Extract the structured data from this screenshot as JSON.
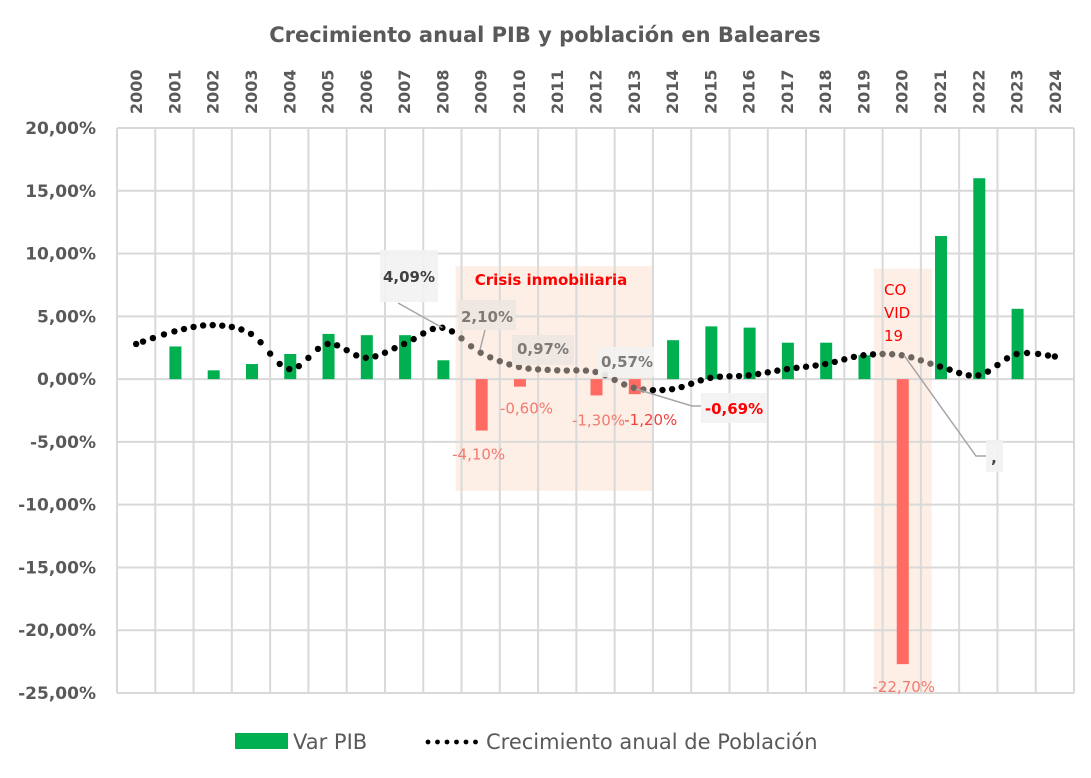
{
  "chart_data": {
    "type": "bar",
    "title": "Crecimiento anual PIB y población en Baleares",
    "xlabel": "",
    "ylabel": "",
    "categories": [
      "2000",
      "2001",
      "2002",
      "2003",
      "2004",
      "2005",
      "2006",
      "2007",
      "2008",
      "2009",
      "2010",
      "2011",
      "2012",
      "2013",
      "2014",
      "2015",
      "2016",
      "2017",
      "2018",
      "2019",
      "2020",
      "2021",
      "2022",
      "2023",
      "2024"
    ],
    "x_axis_position": "top",
    "ylim": [
      -25,
      20
    ],
    "ytick_step": 5,
    "ytick_labels": [
      "20,00%",
      "15,00%",
      "10,00%",
      "5,00%",
      "0,00%",
      "-5,00%",
      "-10,00%",
      "-15,00%",
      "-20,00%",
      "-25,00%"
    ],
    "grid": true,
    "legend_position": "bottom",
    "series": [
      {
        "name": "Var PIB",
        "type": "bar",
        "color": "#00B050",
        "negative_color": "#FF6B63",
        "values": [
          null,
          2.6,
          0.7,
          1.2,
          2.0,
          3.6,
          3.5,
          3.5,
          1.5,
          -4.1,
          -0.6,
          0.0,
          -1.3,
          -1.2,
          3.1,
          4.2,
          4.1,
          2.9,
          2.9,
          1.9,
          -22.7,
          11.4,
          16.0,
          5.6,
          null
        ]
      },
      {
        "name": "Crecimiento anual de  Población",
        "type": "line",
        "style": "dotted",
        "color": "#000000",
        "values": [
          2.8,
          3.8,
          4.3,
          3.6,
          0.8,
          2.8,
          1.7,
          2.8,
          4.09,
          2.1,
          0.97,
          0.7,
          0.57,
          -0.69,
          -0.8,
          0.1,
          0.3,
          0.8,
          1.2,
          1.9,
          1.9,
          1.0,
          0.3,
          2.0,
          1.8
        ]
      }
    ],
    "bar_data_labels": [
      {
        "year": "2009",
        "text": "-4,10%"
      },
      {
        "year": "2010",
        "text": "-0,60%"
      },
      {
        "year": "2012",
        "text": "-1,30%"
      },
      {
        "year": "2013",
        "text": "-1,20%"
      },
      {
        "year": "2020",
        "text": "-22,70%"
      }
    ],
    "line_callouts": [
      {
        "year": "2008",
        "text": "4,09%"
      },
      {
        "year": "2009",
        "text": "2,10%"
      },
      {
        "year": "2010",
        "text": "0,97%"
      },
      {
        "year": "2012",
        "text": "0,57%"
      },
      {
        "year": "2013",
        "text": "-0,69%"
      },
      {
        "year": "2020",
        "text": ","
      }
    ],
    "annotations": [
      {
        "text": "Crisis inmobiliaria",
        "years": [
          "2009",
          "2013"
        ],
        "color": "#FF0000"
      },
      {
        "text": "CO VID 19",
        "lines": [
          "CO",
          "VID",
          "19"
        ],
        "years": [
          "2020"
        ],
        "color": "#FF0000"
      }
    ],
    "shade_color": "#FBE5D6"
  }
}
